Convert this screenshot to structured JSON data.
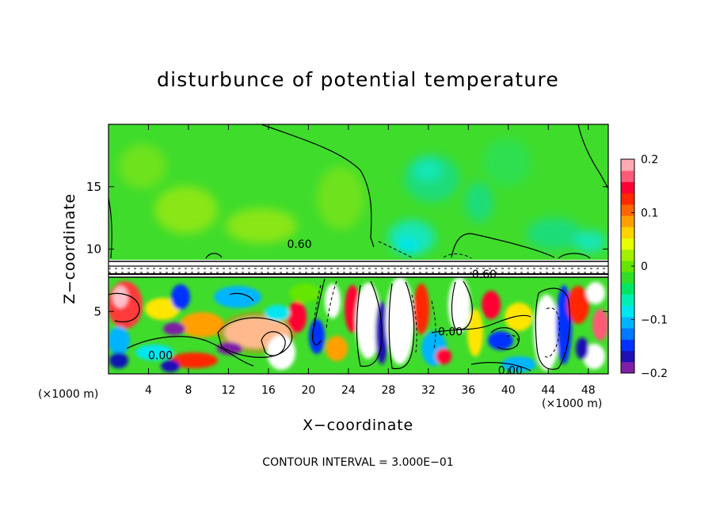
{
  "chart_data": {
    "type": "heatmap",
    "title": "disturbunce of potential temperature",
    "xlabel": "X−coordinate",
    "ylabel": "Z−coordinate",
    "x_unit_left": "(×1000 m)",
    "x_unit_right": "(×1000 m)",
    "x_range": [
      0,
      50
    ],
    "y_range": [
      0,
      20
    ],
    "x_ticks": [
      4,
      8,
      12,
      16,
      20,
      24,
      28,
      32,
      36,
      40,
      44,
      48
    ],
    "x_tick_labels": [
      "4",
      "8",
      "12",
      "16",
      "20",
      "24",
      "28",
      "32",
      "36",
      "40",
      "44",
      "48"
    ],
    "y_ticks": [
      5,
      10,
      15
    ],
    "y_tick_labels": [
      "5",
      "10",
      "15"
    ],
    "colorbar": {
      "range": [
        -0.2,
        0.2
      ],
      "ticks": [
        0.2,
        0.1,
        0,
        -0.1,
        -0.2
      ],
      "tick_labels": [
        "0.2",
        "0.1",
        "0",
        "−0.1",
        "−0.2"
      ],
      "colors": [
        "#7f1fa6",
        "#1f10b4",
        "#0032ff",
        "#0078ff",
        "#00b4ff",
        "#00e6f0",
        "#00f0b4",
        "#00e664",
        "#34dc2a",
        "#64e600",
        "#a0f000",
        "#e6ff00",
        "#ffd200",
        "#ffa000",
        "#ff6400",
        "#ff2800",
        "#ff0032",
        "#ff5a78",
        "#ffaab4"
      ]
    },
    "contour_labels": [
      {
        "text": "0.60",
        "x": 19.1,
        "y": 10.4
      },
      {
        "text": "0.60",
        "x": 37.6,
        "y": 8.0
      },
      {
        "text": "0.00",
        "x": 34.2,
        "y": 3.4
      },
      {
        "text": "0.00",
        "x": 5.2,
        "y": 1.5
      },
      {
        "text": "0.00",
        "x": 40.2,
        "y": 0.3
      }
    ],
    "contour_interval_text": "CONTOUR INTERVAL = 3.000E−01",
    "grid": false
  },
  "colors": {
    "upper_field": "#3fdc2c",
    "band": "#ffffff",
    "text": "#000000"
  }
}
